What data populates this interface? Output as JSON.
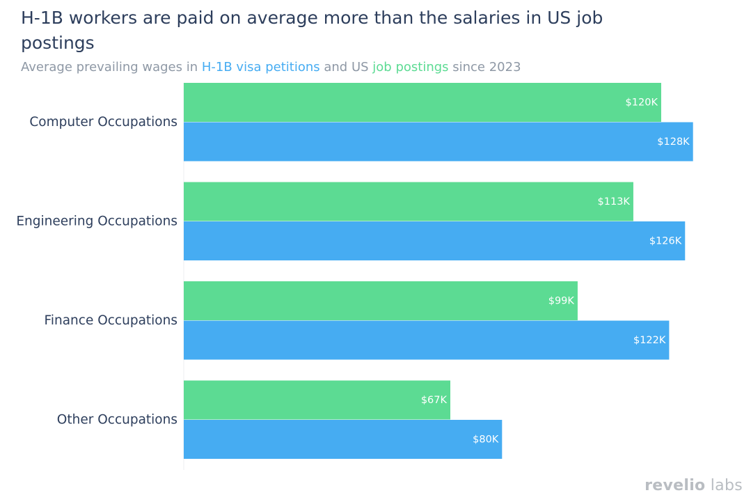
{
  "title": "H-1B workers are paid on average more than the salaries in US job postings",
  "subtitle": {
    "part1": "Average prevailing wages in ",
    "h1b": "H-1B visa petitions",
    "part2": " and US ",
    "jobs": "job postings",
    "part3": " since 2023"
  },
  "logo": {
    "revelio": "revelio",
    "labs": "labs"
  },
  "colors": {
    "h1b": "#46acf2",
    "jobs": "#5cdb93",
    "text": "#2d3e5c",
    "muted": "#8e98a5"
  },
  "chart_data": {
    "type": "bar",
    "orientation": "horizontal",
    "categories": [
      "Computer Occupations",
      "Engineering Occupations",
      "Finance Occupations",
      "Other Occupations"
    ],
    "series": [
      {
        "name": "job postings",
        "color": "#5cdb93",
        "values": [
          120,
          113,
          99,
          67
        ],
        "labels": [
          "$120K",
          "$113K",
          "$99K",
          "$67K"
        ]
      },
      {
        "name": "H-1B visa petitions",
        "color": "#46acf2",
        "values": [
          128,
          126,
          122,
          80
        ],
        "labels": [
          "$128K",
          "$126K",
          "$122K",
          "$80K"
        ]
      }
    ],
    "xlim": [
      0,
      134
    ],
    "grid": false,
    "legend": "in subtitle"
  }
}
